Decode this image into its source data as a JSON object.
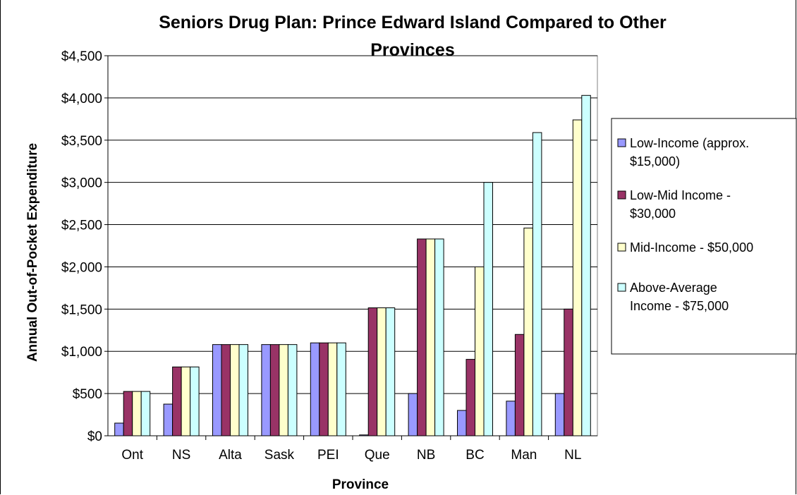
{
  "chart_data": {
    "type": "bar",
    "title": "Seniors Drug Plan: Prince Edward Island Compared to Other Provinces",
    "title_lines": [
      "Seniors Drug Plan: Prince Edward Island Compared to Other",
      "Provinces"
    ],
    "xlabel": "Province",
    "ylabel": "Annual Out-of-Pocket Expenditure",
    "ylim": [
      0,
      4500
    ],
    "yticks": [
      0,
      500,
      1000,
      1500,
      2000,
      2500,
      3000,
      3500,
      4000,
      4500
    ],
    "ytick_labels": [
      "$0",
      "$500",
      "$1,000",
      "$1,500",
      "$2,000",
      "$2,500",
      "$3,000",
      "$3,500",
      "$4,000",
      "$4,500"
    ],
    "grid": true,
    "legend_position": "right",
    "categories": [
      "Ont",
      "NS",
      "Alta",
      "Sask",
      "PEI",
      "Que",
      "NB",
      "BC",
      "Man",
      "NL"
    ],
    "series": [
      {
        "name": "Low-Income (approx. $15,000)",
        "legend_lines": [
          "Low-Income (approx.",
          "$15,000)"
        ],
        "color": "#9999ff",
        "values": [
          150,
          375,
          1080,
          1080,
          1100,
          10,
          500,
          300,
          410,
          500
        ]
      },
      {
        "name": "Low-Mid Income - $30,000",
        "legend_lines": [
          "Low-Mid Income -",
          "$30,000"
        ],
        "color": "#993366",
        "values": [
          525,
          815,
          1080,
          1080,
          1100,
          1515,
          2330,
          905,
          1200,
          1500
        ]
      },
      {
        "name": "Mid-Income - $50,000",
        "legend_lines": [
          "Mid-Income - $50,000"
        ],
        "color": "#ffffcc",
        "values": [
          525,
          815,
          1080,
          1080,
          1100,
          1515,
          2330,
          2000,
          2460,
          3740
        ]
      },
      {
        "name": "Above-Average Income - $75,000",
        "legend_lines": [
          "Above-Average",
          "Income - $75,000"
        ],
        "color": "#ccffff",
        "values": [
          525,
          815,
          1080,
          1080,
          1100,
          1515,
          2330,
          3000,
          3590,
          4030
        ]
      }
    ]
  }
}
